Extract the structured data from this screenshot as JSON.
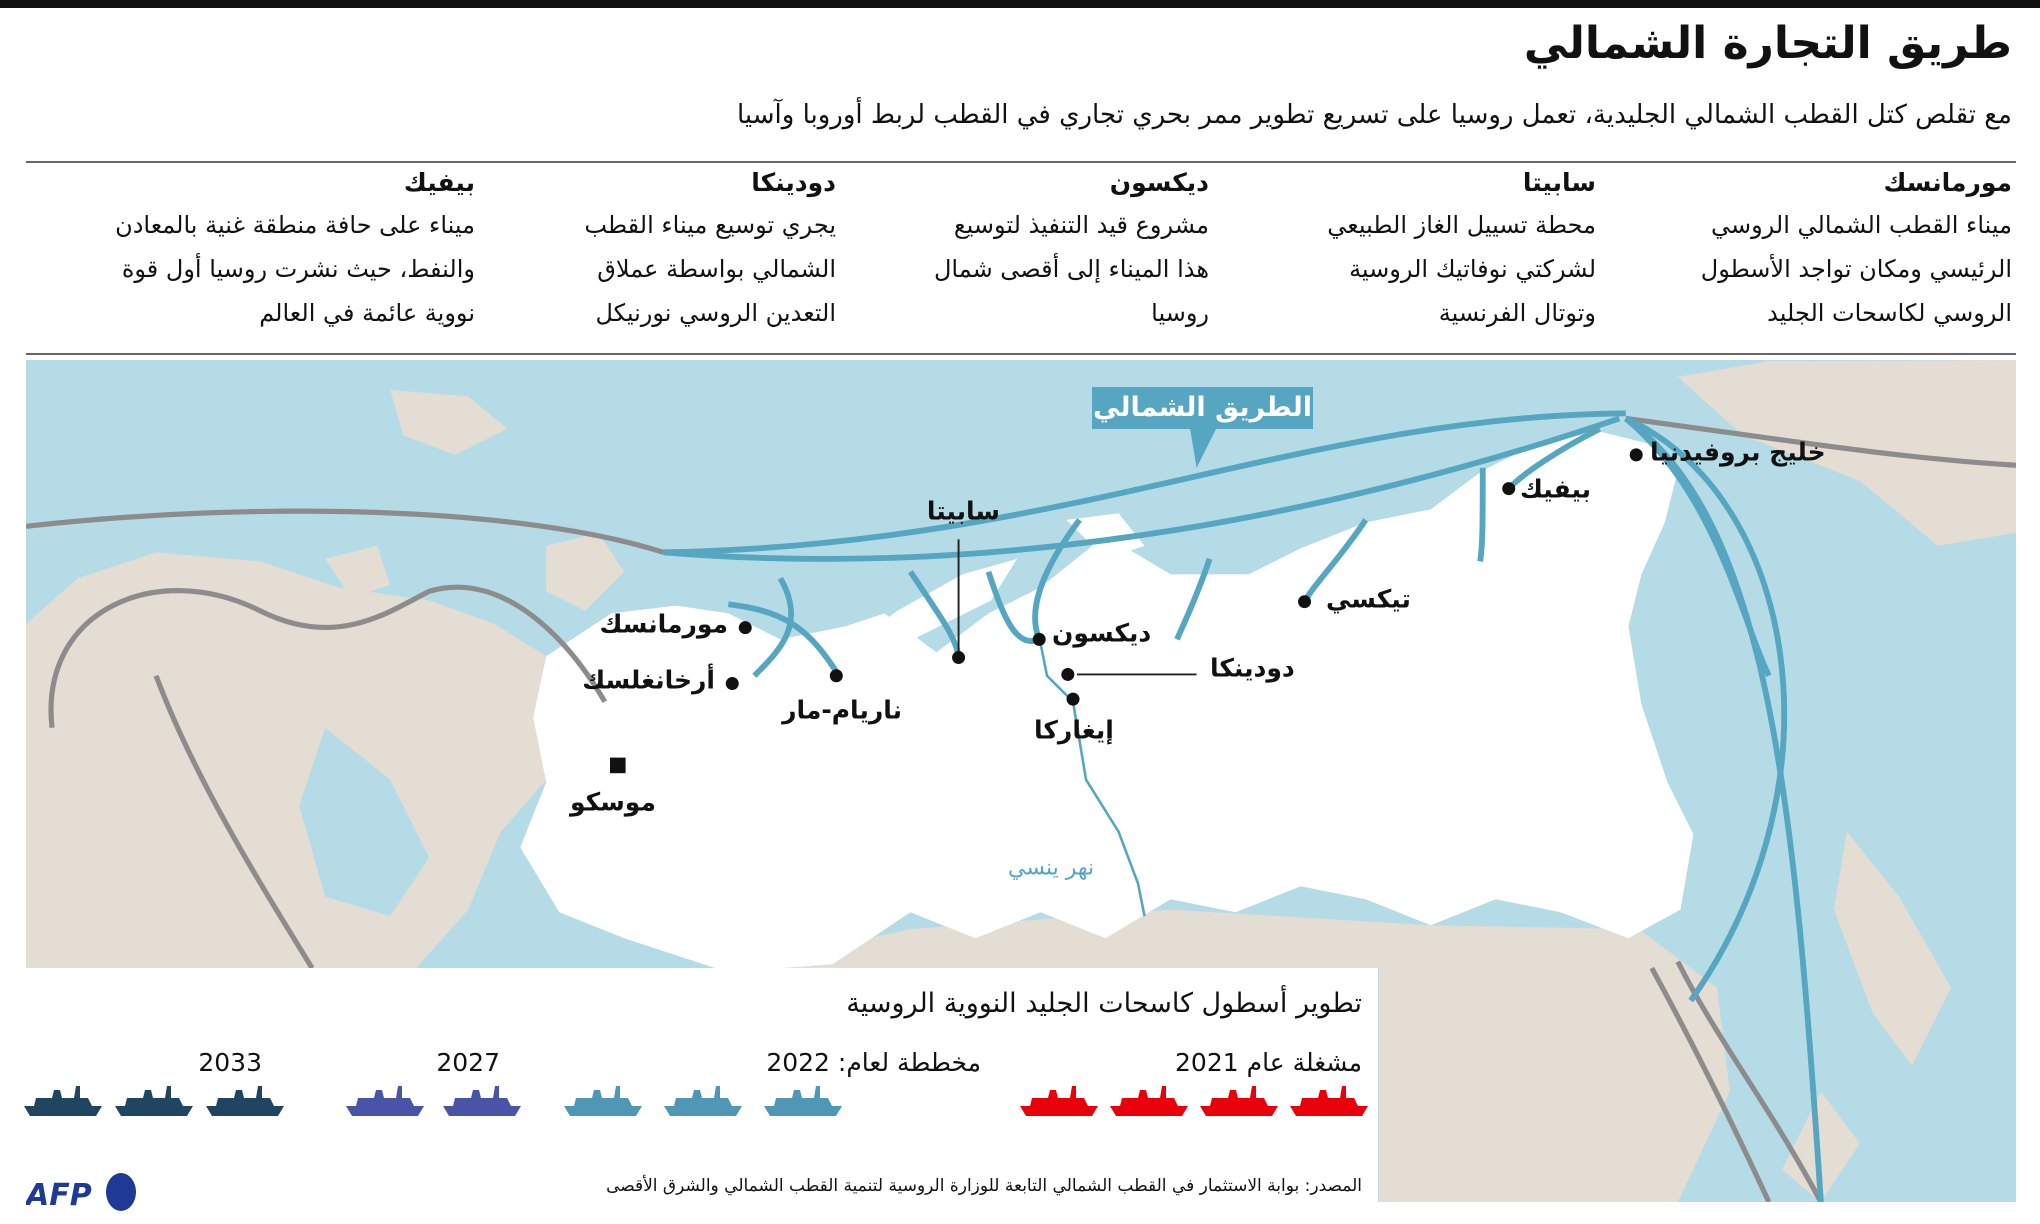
{
  "title": "طريق التجارة الشمالي",
  "subtitle": "مع تقلص كتل القطب الشمالي الجليدية، تعمل روسيا على تسريع تطوير ممر بحري تجاري في القطب لربط أوروبا وآسيا",
  "columns": [
    {
      "heading": "مورمانسك",
      "lines": [
        "ميناء القطب الشمالي الروسي",
        "الرئيسي ومكان تواجد الأسطول",
        "الروسي لكاسحات الجليد"
      ]
    },
    {
      "heading": "سابيتا",
      "lines": [
        "محطة تسييل الغاز الطبيعي",
        "لشركتي نوفاتيك الروسية",
        "وتوتال الفرنسية"
      ]
    },
    {
      "heading": "ديكسون",
      "lines": [
        "مشروع قيد التنفيذ لتوسيع",
        "هذا الميناء إلى أقصى شمال",
        "روسيا"
      ]
    },
    {
      "heading": "دودينكا",
      "lines": [
        "يجري توسيع ميناء القطب",
        "الشمالي بواسطة عملاق",
        "التعدين الروسي نورنيكل"
      ]
    },
    {
      "heading": "بيفيك",
      "lines": [
        "ميناء على حافة منطقة غنية بالمعادن",
        "والنفط، حيث نشرت روسيا أول قوة",
        "نووية عائمة في العالم"
      ]
    }
  ],
  "map": {
    "route_label": "الطريق الشمالي",
    "river_label": "نهر ينسي",
    "places": {
      "sabetta": "سابيتا",
      "murmansk": "مورمانسك",
      "arkhangelsk": "أرخانغلسك",
      "naryan_mar": "ناريام-مار",
      "dikson": "ديكسون",
      "dudinka": "دودينكا",
      "igarka": "إيغاركا",
      "tiksi": "تيكسي",
      "pevek": "بيفيك",
      "provideniya": "خليج بروفيدنيا",
      "moscow": "موسكو"
    },
    "colors": {
      "sea": "#b5dce6",
      "russia": "#ffffff",
      "other_land": "#e3ddd3",
      "route": "#57a6c1",
      "other_route": "#8c8c8c"
    }
  },
  "legend": {
    "title": "تطوير أسطول كاسحات الجليد النووية الروسية",
    "groups": [
      {
        "label": "مشغلة عام 2021",
        "count": 4,
        "color": "#e8000b"
      },
      {
        "label": "مخططة لعام: 2022",
        "count": 3,
        "color": "#4f97b5"
      },
      {
        "label": "2027",
        "count": 2,
        "color": "#4a54a6"
      },
      {
        "label": "2033",
        "count": 3,
        "color": "#1f4560"
      }
    ]
  },
  "source": "المصدر: بوابة الاستثمار في القطب الشمالي التابعة للوزارة الروسية لتنمية القطب الشمالي والشرق الأقصى",
  "logo": "AFP"
}
